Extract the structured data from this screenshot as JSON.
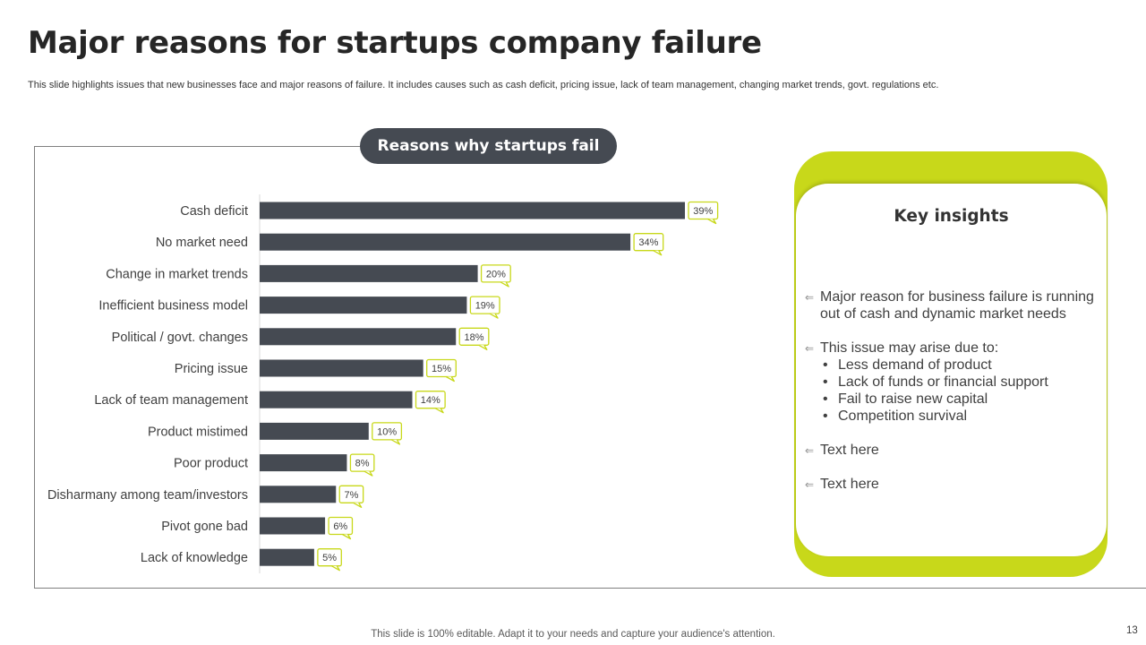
{
  "slide": {
    "title": "Major reasons for startups company failure",
    "subtitle": "This slide highlights issues that new businesses face and major reasons of failure. It includes causes such as cash deficit, pricing issue, lack of team management, changing market trends, govt. regulations etc.",
    "footer": "This slide is 100% editable. Adapt it to your needs and capture your audience's attention.",
    "page_number": "13"
  },
  "chart_heading": "Reasons why startups fail",
  "chart_data": {
    "type": "bar",
    "orientation": "horizontal",
    "title": "Reasons why startups fail",
    "categories": [
      "Cash deficit",
      "No market need",
      "Change in market trends",
      "Inefficient business model",
      "Political / govt. changes",
      "Pricing issue",
      "Lack of team management",
      "Product mistimed",
      "Poor product",
      "Disharmany among team/investors",
      "Pivot gone bad",
      "Lack of knowledge"
    ],
    "values": [
      39,
      34,
      20,
      19,
      18,
      15,
      14,
      10,
      8,
      7,
      6,
      5
    ],
    "value_labels": [
      "39%",
      "34%",
      "20%",
      "19%",
      "18%",
      "15%",
      "14%",
      "10%",
      "8%",
      "7%",
      "6%",
      "5%"
    ],
    "unit": "%",
    "xlim": [
      0,
      39
    ],
    "grid": false,
    "legend": "none",
    "bar_color": "#454a52",
    "label_border_color": "#c8d81a"
  },
  "insights": {
    "title": "Key insights",
    "bullet_icon": "left-arrow-icon",
    "items": [
      {
        "text": "Major reason for business failure is running out of cash and dynamic market needs"
      },
      {
        "text": "This issue may arise due to:",
        "sub": [
          "Less demand of product",
          "Lack of funds or financial support",
          "Fail to raise new capital",
          "Competition survival"
        ]
      },
      {
        "text": "Text here"
      },
      {
        "text": "Text here"
      }
    ]
  },
  "colors": {
    "accent": "#c8d81a",
    "dark": "#454a52"
  }
}
